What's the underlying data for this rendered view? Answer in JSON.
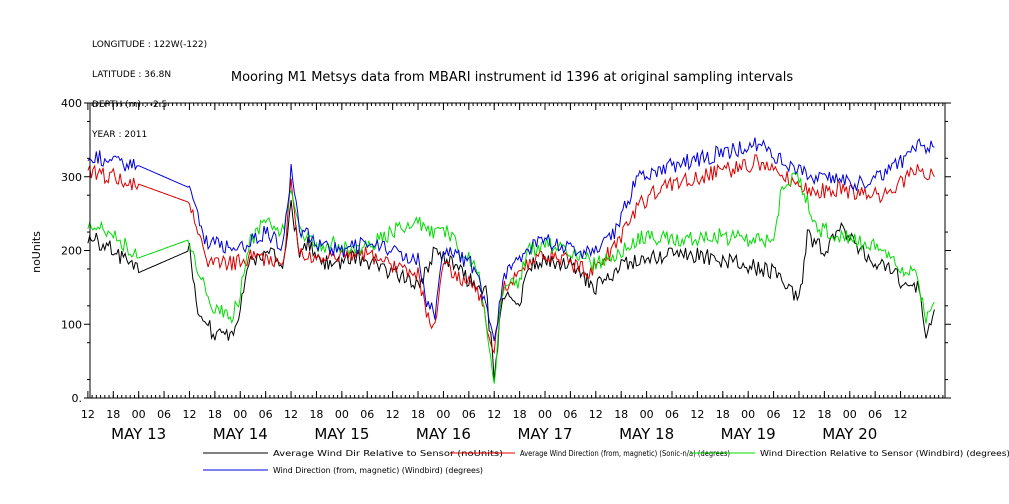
{
  "meta": {
    "longitude": "LONGITUDE : 122W(-122)",
    "latitude": "LATITUDE : 36.8N",
    "depth": "DEPTH (m) : -2.5",
    "year": "YEAR : 2011"
  },
  "chart_data": {
    "type": "line",
    "title": "Mooring M1 Metsys data from MBARI instrument id 1396 at original sampling intervals",
    "ylabel": "noUnits",
    "xlabel": "",
    "ylim": [
      0,
      400
    ],
    "yticks": [
      "0.",
      "100",
      "200",
      "300",
      "400"
    ],
    "x_unit": "hours after 00 UTC May 13",
    "xlim": [
      -11.5,
      190.5
    ],
    "hour_ticks": [
      "12",
      "18",
      "00",
      "06",
      "12",
      "18",
      "00",
      "06",
      "12",
      "18",
      "00",
      "06",
      "12",
      "18",
      "00",
      "06",
      "12",
      "18",
      "00",
      "06",
      "12",
      "18",
      "00",
      "06",
      "12",
      "18",
      "00",
      "06",
      "12",
      "18",
      "00",
      "06",
      "12"
    ],
    "day_labels": [
      "MAY 13",
      "MAY 14",
      "MAY 15",
      "MAY 16",
      "MAY 17",
      "MAY 18",
      "MAY 19",
      "MAY 20"
    ],
    "grid": false,
    "series": [
      {
        "name": "Average Wind Dir Relative to Sensor (noUnits)",
        "color": "#000000",
        "points": [
          [
            -12,
            220
          ],
          [
            -6,
            200
          ],
          [
            0,
            170
          ],
          [
            12,
            200
          ],
          [
            14,
            120
          ],
          [
            18,
            85
          ],
          [
            22,
            80
          ],
          [
            24,
            120
          ],
          [
            26,
            185
          ],
          [
            30,
            200
          ],
          [
            34,
            185
          ],
          [
            36,
            260
          ],
          [
            38,
            200
          ],
          [
            40,
            210
          ],
          [
            42,
            190
          ],
          [
            46,
            180
          ],
          [
            50,
            190
          ],
          [
            54,
            185
          ],
          [
            60,
            170
          ],
          [
            66,
            150
          ],
          [
            70,
            200
          ],
          [
            72,
            190
          ],
          [
            78,
            160
          ],
          [
            82,
            150
          ],
          [
            84,
            30
          ],
          [
            86,
            140
          ],
          [
            90,
            125
          ],
          [
            92,
            180
          ],
          [
            96,
            190
          ],
          [
            102,
            180
          ],
          [
            108,
            150
          ],
          [
            114,
            180
          ],
          [
            120,
            190
          ],
          [
            130,
            195
          ],
          [
            140,
            185
          ],
          [
            150,
            170
          ],
          [
            156,
            130
          ],
          [
            158,
            220
          ],
          [
            162,
            200
          ],
          [
            166,
            230
          ],
          [
            170,
            200
          ],
          [
            176,
            180
          ],
          [
            180,
            160
          ],
          [
            184,
            150
          ],
          [
            186,
            90
          ],
          [
            188,
            120
          ]
        ]
      },
      {
        "name": "Average Wind Direction (from, magnetic) (Sonic-n/a) (degrees)",
        "color": "#dd0000",
        "points": [
          [
            -12,
            305
          ],
          [
            -6,
            300
          ],
          [
            0,
            290
          ],
          [
            12,
            265
          ],
          [
            16,
            180
          ],
          [
            24,
            185
          ],
          [
            28,
            195
          ],
          [
            34,
            175
          ],
          [
            36,
            290
          ],
          [
            38,
            200
          ],
          [
            42,
            190
          ],
          [
            48,
            190
          ],
          [
            54,
            195
          ],
          [
            60,
            180
          ],
          [
            66,
            170
          ],
          [
            68,
            110
          ],
          [
            70,
            95
          ],
          [
            72,
            180
          ],
          [
            76,
            160
          ],
          [
            80,
            150
          ],
          [
            84,
            60
          ],
          [
            86,
            150
          ],
          [
            92,
            180
          ],
          [
            96,
            195
          ],
          [
            100,
            190
          ],
          [
            106,
            170
          ],
          [
            112,
            200
          ],
          [
            118,
            260
          ],
          [
            122,
            280
          ],
          [
            126,
            290
          ],
          [
            136,
            305
          ],
          [
            144,
            315
          ],
          [
            146,
            320
          ],
          [
            150,
            310
          ],
          [
            156,
            290
          ],
          [
            160,
            280
          ],
          [
            166,
            285
          ],
          [
            170,
            275
          ],
          [
            176,
            275
          ],
          [
            180,
            290
          ],
          [
            184,
            310
          ],
          [
            188,
            300
          ]
        ]
      },
      {
        "name": "Wind Direction Relative to Sensor (Windbird) (degrees)",
        "color": "#00dd00",
        "points": [
          [
            -12,
            240
          ],
          [
            -6,
            220
          ],
          [
            0,
            190
          ],
          [
            12,
            215
          ],
          [
            14,
            170
          ],
          [
            18,
            120
          ],
          [
            22,
            110
          ],
          [
            24,
            140
          ],
          [
            26,
            210
          ],
          [
            30,
            240
          ],
          [
            34,
            225
          ],
          [
            36,
            290
          ],
          [
            38,
            230
          ],
          [
            42,
            200
          ],
          [
            46,
            210
          ],
          [
            50,
            200
          ],
          [
            54,
            205
          ],
          [
            58,
            220
          ],
          [
            62,
            230
          ],
          [
            66,
            240
          ],
          [
            70,
            220
          ],
          [
            72,
            230
          ],
          [
            76,
            200
          ],
          [
            80,
            180
          ],
          [
            84,
            20
          ],
          [
            86,
            150
          ],
          [
            90,
            160
          ],
          [
            92,
            200
          ],
          [
            96,
            210
          ],
          [
            102,
            200
          ],
          [
            108,
            180
          ],
          [
            114,
            200
          ],
          [
            120,
            220
          ],
          [
            128,
            215
          ],
          [
            136,
            220
          ],
          [
            144,
            215
          ],
          [
            150,
            210
          ],
          [
            152,
            290
          ],
          [
            156,
            300
          ],
          [
            160,
            230
          ],
          [
            166,
            220
          ],
          [
            172,
            210
          ],
          [
            176,
            200
          ],
          [
            180,
            180
          ],
          [
            184,
            160
          ],
          [
            186,
            110
          ],
          [
            188,
            130
          ]
        ]
      },
      {
        "name": "Wind Direction (from, magnetic) (Windbird) (degrees)",
        "color": "#0000dd",
        "points": [
          [
            -12,
            330
          ],
          [
            -6,
            320
          ],
          [
            0,
            315
          ],
          [
            12,
            285
          ],
          [
            16,
            210
          ],
          [
            24,
            205
          ],
          [
            30,
            225
          ],
          [
            34,
            205
          ],
          [
            36,
            310
          ],
          [
            38,
            230
          ],
          [
            42,
            210
          ],
          [
            48,
            200
          ],
          [
            54,
            210
          ],
          [
            60,
            200
          ],
          [
            66,
            190
          ],
          [
            68,
            125
          ],
          [
            70,
            115
          ],
          [
            72,
            200
          ],
          [
            76,
            190
          ],
          [
            80,
            175
          ],
          [
            84,
            70
          ],
          [
            86,
            165
          ],
          [
            92,
            200
          ],
          [
            96,
            215
          ],
          [
            100,
            205
          ],
          [
            106,
            195
          ],
          [
            112,
            220
          ],
          [
            118,
            300
          ],
          [
            122,
            310
          ],
          [
            126,
            315
          ],
          [
            136,
            330
          ],
          [
            144,
            340
          ],
          [
            146,
            345
          ],
          [
            150,
            330
          ],
          [
            156,
            310
          ],
          [
            160,
            300
          ],
          [
            166,
            300
          ],
          [
            170,
            290
          ],
          [
            176,
            300
          ],
          [
            180,
            320
          ],
          [
            184,
            345
          ],
          [
            188,
            340
          ]
        ]
      }
    ]
  }
}
